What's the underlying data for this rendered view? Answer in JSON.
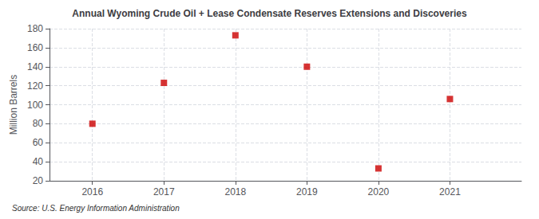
{
  "chart_data": {
    "type": "scatter",
    "title": "Annual Wyoming Crude Oil + Lease Condensate Reserves Extensions and Discoveries",
    "ylabel": "Million Barrels",
    "source": "Source: U.S. Energy Information Administration",
    "x": [
      2016,
      2017,
      2018,
      2019,
      2020,
      2021
    ],
    "values": [
      80,
      123,
      173,
      140,
      33,
      106
    ],
    "color": "#cc0000",
    "marker": "square",
    "xlim": [
      2015.4,
      2022.0
    ],
    "xticks": [
      2016,
      2017,
      2018,
      2019,
      2020,
      2021
    ],
    "ylim": [
      20,
      180
    ],
    "yticks": [
      20,
      40,
      60,
      80,
      100,
      120,
      140,
      160,
      180
    ],
    "grid": true
  }
}
